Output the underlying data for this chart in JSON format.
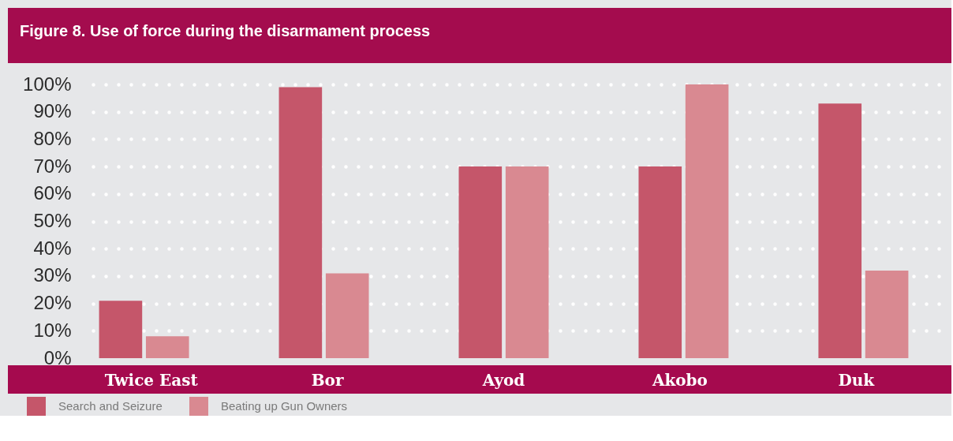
{
  "chart_data": {
    "type": "bar",
    "title": "Figure 8. Use of force during the disarmament process",
    "categories": [
      "Twice East",
      "Bor",
      "Ayod",
      "Akobo",
      "Duk"
    ],
    "series": [
      {
        "name": "Search and Seizure",
        "color": "#c5566a",
        "values": [
          21,
          99,
          70,
          70,
          93
        ]
      },
      {
        "name": "Beating up Gun Owners",
        "color": "#d98991",
        "values": [
          8,
          31,
          70,
          100,
          32
        ]
      }
    ],
    "ylim": [
      0,
      100
    ],
    "yticks": [
      {
        "value": 0,
        "label": "0%"
      },
      {
        "value": 10,
        "label": "10%"
      },
      {
        "value": 20,
        "label": "20%"
      },
      {
        "value": 30,
        "label": "30%"
      },
      {
        "value": 40,
        "label": "40%"
      },
      {
        "value": 50,
        "label": "50%"
      },
      {
        "value": 60,
        "label": "60%"
      },
      {
        "value": 70,
        "label": "70%"
      },
      {
        "value": 80,
        "label": "80%"
      },
      {
        "value": 90,
        "label": "90%"
      },
      {
        "value": 100,
        "label": "100%"
      }
    ],
    "grid": "y",
    "legend": "bottom left"
  }
}
